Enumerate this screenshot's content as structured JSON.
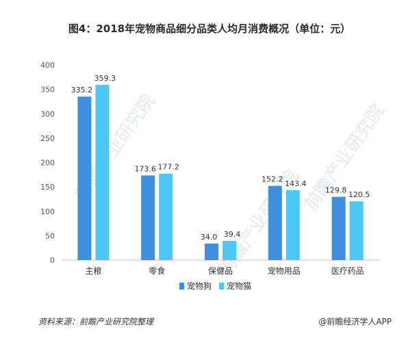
{
  "chart_data": {
    "type": "bar",
    "title": "图4：2018年宠物商品细分品类人均月消费概况（单位：元）",
    "xlabel": "",
    "ylabel": "",
    "ylim": [
      0,
      400
    ],
    "yticks": [
      0,
      50,
      100,
      150,
      200,
      250,
      300,
      350,
      400
    ],
    "grid": false,
    "legend_position": "bottom",
    "categories": [
      "主粮",
      "零食",
      "保健品",
      "宠物用品",
      "医疗药品"
    ],
    "series": [
      {
        "name": "宠物狗",
        "values": [
          335.2,
          173.6,
          34.0,
          152.2,
          129.8
        ],
        "labels": [
          "335.2",
          "173.6",
          "34.0",
          "152.2",
          "129.8"
        ],
        "color": "#3f8fe0"
      },
      {
        "name": "宠物猫",
        "values": [
          359.3,
          177.2,
          39.4,
          143.4,
          120.5
        ],
        "labels": [
          "359.3",
          "177.2",
          "39.4",
          "143.4",
          "120.5"
        ],
        "color": "#4cc8f6"
      }
    ]
  },
  "footer": {
    "source": "资料来源：前瞻产业研究院整理",
    "attribution": "@前瞻经济学人APP"
  },
  "watermark": {
    "text": "前瞻产业研究院"
  }
}
